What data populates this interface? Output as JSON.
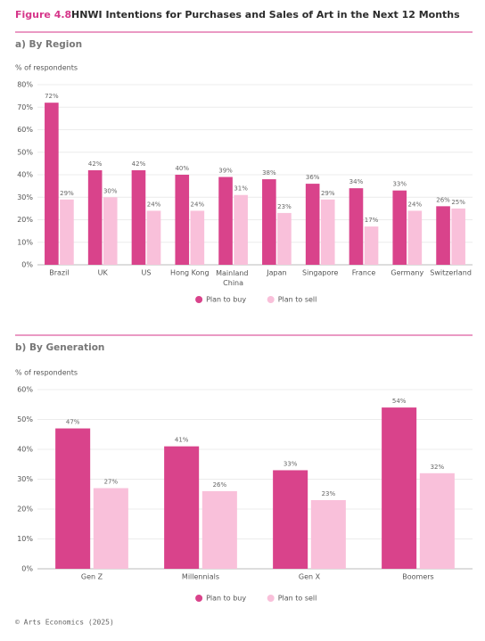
{
  "figure": {
    "label": "Figure 4.8",
    "title": "HNWI Intentions for Purchases and Sales of Art in the Next 12 Months"
  },
  "source": "© Arts Economics (2025)",
  "chart_data": [
    {
      "type": "bar",
      "subtitle": "a) By Region",
      "ylabel": "% of respondents",
      "categories": [
        "Brazil",
        "UK",
        "US",
        "Hong Kong",
        "Mainland China",
        "Japan",
        "Singapore",
        "France",
        "Germany",
        "Switzerland"
      ],
      "series": [
        {
          "name": "Plan to buy",
          "color": "#d9438b",
          "values": [
            72,
            42,
            42,
            40,
            39,
            38,
            36,
            34,
            33,
            26
          ],
          "value_labels": [
            "72%",
            "42%",
            "42%",
            "40%",
            "39%",
            "38%",
            "36%",
            "34%",
            "33%",
            "26%"
          ]
        },
        {
          "name": "Plan to sell",
          "color": "#f9c0da",
          "values": [
            29,
            30,
            24,
            24,
            31,
            23,
            29,
            17,
            24,
            25
          ],
          "value_labels": [
            "29%",
            "30%",
            "24%",
            "24%",
            "31%",
            "23%",
            "29%",
            "17%",
            "24%",
            "25%"
          ]
        }
      ],
      "ylim": [
        0,
        80
      ],
      "yticks": [
        {
          "value": 0,
          "label": "0%"
        },
        {
          "value": 10,
          "label": "10%"
        },
        {
          "value": 20,
          "label": "20%"
        },
        {
          "value": 30,
          "label": "30%"
        },
        {
          "value": 40,
          "label": "40%"
        },
        {
          "value": 50,
          "label": "50%"
        },
        {
          "value": 60,
          "label": "60%"
        },
        {
          "value": 70,
          "label": "70%"
        },
        {
          "value": 80,
          "label": "80%"
        }
      ],
      "grid": true,
      "legend": "bottom"
    },
    {
      "type": "bar",
      "subtitle": "b) By Generation",
      "ylabel": "% of respondents",
      "categories": [
        "Gen Z",
        "Millennials",
        "Gen X",
        "Boomers"
      ],
      "series": [
        {
          "name": "Plan to buy",
          "color": "#d9438b",
          "values": [
            47,
            41,
            33,
            54
          ],
          "value_labels": [
            "47%",
            "41%",
            "33%",
            "54%"
          ]
        },
        {
          "name": "Plan to sell",
          "color": "#f9c0da",
          "values": [
            27,
            26,
            23,
            32
          ],
          "value_labels": [
            "27%",
            "26%",
            "23%",
            "32%"
          ]
        }
      ],
      "ylim": [
        0,
        60
      ],
      "yticks": [
        {
          "value": 0,
          "label": "0%"
        },
        {
          "value": 10,
          "label": "10%"
        },
        {
          "value": 20,
          "label": "20%"
        },
        {
          "value": 30,
          "label": "30%"
        },
        {
          "value": 40,
          "label": "40%"
        },
        {
          "value": 50,
          "label": "50%"
        },
        {
          "value": 60,
          "label": "60%"
        }
      ],
      "grid": true,
      "legend": "bottom"
    }
  ]
}
